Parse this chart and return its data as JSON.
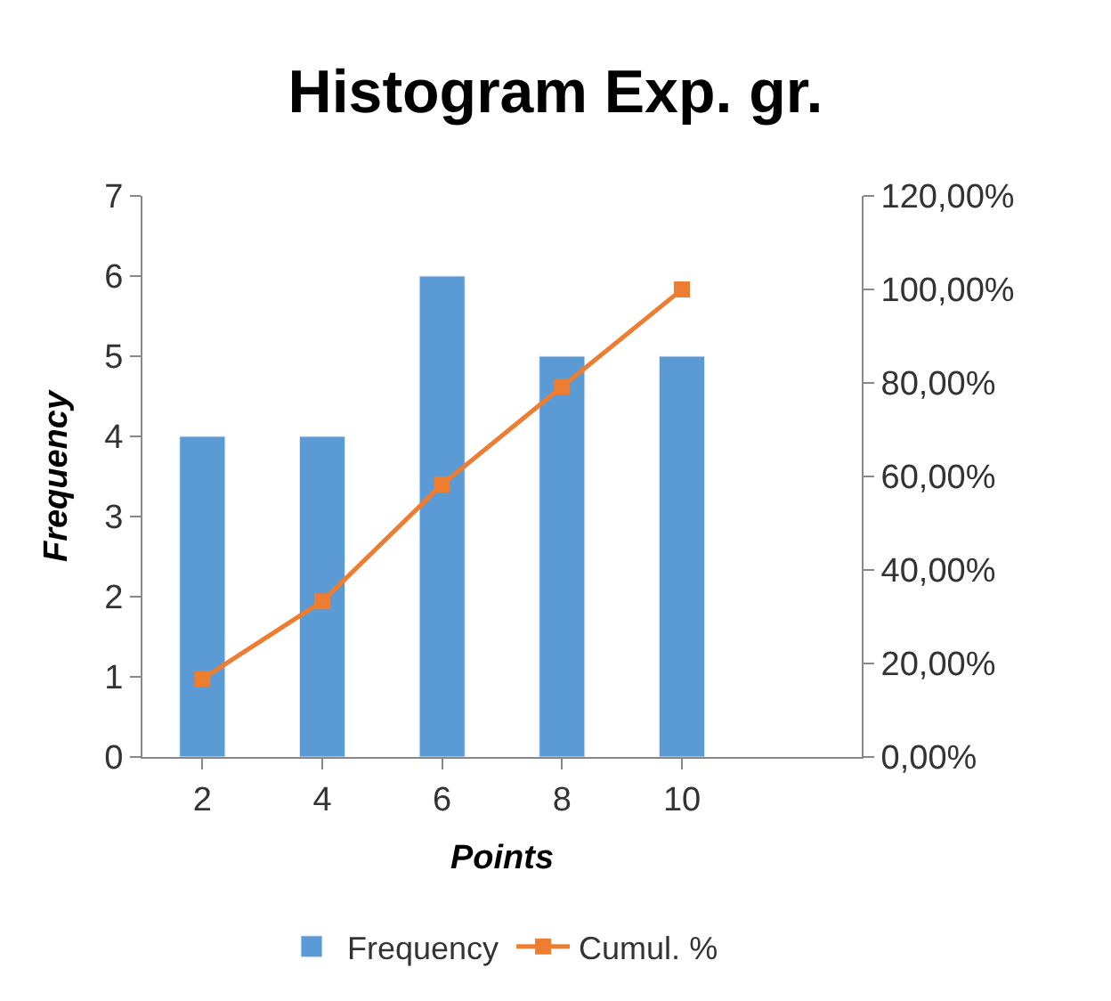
{
  "chart_data": {
    "type": "bar",
    "title": "Histogram Exp. gr.",
    "xlabel": "Points",
    "ylabel": "Frequency",
    "categories": [
      "2",
      "4",
      "6",
      "8",
      "10",
      null
    ],
    "series": [
      {
        "name": "Frequency",
        "color": "#5b9bd5",
        "values": [
          4,
          4,
          6,
          5,
          5,
          null
        ]
      },
      {
        "name": "Cumul. %",
        "type": "line",
        "axis": "y2",
        "color": "#ed7d31",
        "marker": "square",
        "values": [
          16.7,
          33.3,
          58.3,
          79.2,
          100,
          null
        ]
      }
    ],
    "ylim": [
      0,
      7
    ],
    "yticks": [
      0,
      1,
      2,
      3,
      4,
      5,
      6,
      7
    ],
    "y2lim": [
      0,
      120
    ],
    "y2ticks": [
      {
        "value": 0,
        "label": "0,00%"
      },
      {
        "value": 20,
        "label": "20,00%"
      },
      {
        "value": 40,
        "label": "40,00%"
      },
      {
        "value": 60,
        "label": "60,00%"
      },
      {
        "value": 80,
        "label": "80,00%"
      },
      {
        "value": 100,
        "label": "100,00%"
      },
      {
        "value": 120,
        "label": "120,00%"
      }
    ],
    "legend": "bottom"
  }
}
